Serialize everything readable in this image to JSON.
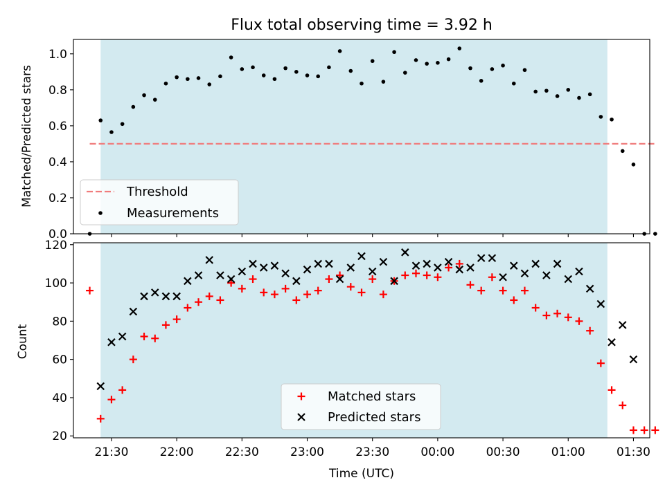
{
  "colors": {
    "shade": "#d3eaf0",
    "threshold": "#f07c7c",
    "measurements": "#000000",
    "matched": "#ff0000",
    "predicted": "#000000"
  },
  "chart_data": [
    {
      "type": "scatter",
      "title": "Flux total observing time = 3.92 h",
      "xlabel": "",
      "ylabel": "Matched/Predicted stars",
      "xlim": [
        -17.5,
        247.5
      ],
      "ylim": [
        0,
        1.08
      ],
      "yticks": [
        0.0,
        0.2,
        0.4,
        0.6,
        0.8,
        1.0
      ],
      "ytick_labels": [
        "0.0",
        "0.2",
        "0.4",
        "0.6",
        "0.8",
        "1.0"
      ],
      "shaded_span": [
        -5,
        228
      ],
      "x_unit": "minutes after 21:30 UTC",
      "grid": false,
      "legend_position": "lower-left",
      "legend": [
        "Threshold",
        "Measurements"
      ],
      "threshold": {
        "name": "Threshold",
        "value": 0.5,
        "x": [
          -10,
          250
        ]
      },
      "series": [
        {
          "name": "Measurements",
          "x": [
            -10,
            -5,
            0,
            5,
            10,
            15,
            20,
            25,
            30,
            35,
            40,
            45,
            50,
            55,
            60,
            65,
            70,
            75,
            80,
            85,
            90,
            95,
            100,
            105,
            110,
            115,
            120,
            125,
            130,
            135,
            140,
            145,
            150,
            155,
            160,
            165,
            170,
            175,
            180,
            185,
            190,
            195,
            200,
            205,
            210,
            215,
            220,
            225,
            230,
            235,
            240,
            245,
            250
          ],
          "y": [
            0.0,
            0.63,
            0.565,
            0.61,
            0.705,
            0.77,
            0.745,
            0.835,
            0.87,
            0.86,
            0.865,
            0.83,
            0.875,
            0.98,
            0.915,
            0.925,
            0.88,
            0.86,
            0.92,
            0.9,
            0.88,
            0.875,
            0.925,
            1.015,
            0.905,
            0.835,
            0.96,
            0.845,
            1.01,
            0.895,
            0.965,
            0.945,
            0.95,
            0.97,
            1.03,
            0.92,
            0.85,
            0.915,
            0.935,
            0.835,
            0.91,
            0.79,
            0.795,
            0.765,
            0.8,
            0.755,
            0.775,
            0.65,
            0.635,
            0.46,
            0.385,
            0.0,
            0.0
          ]
        }
      ]
    },
    {
      "type": "scatter",
      "title": "",
      "xlabel": "Time (UTC)",
      "ylabel": "Count",
      "xlim": [
        -17.5,
        247.5
      ],
      "ylim": [
        19,
        121
      ],
      "yticks": [
        20,
        40,
        60,
        80,
        100,
        120
      ],
      "ytick_labels": [
        "20",
        "40",
        "60",
        "80",
        "100",
        "120"
      ],
      "xticks": [
        0,
        30,
        60,
        90,
        120,
        150,
        180,
        210,
        240
      ],
      "xtick_labels": [
        "21:30",
        "22:00",
        "22:30",
        "23:00",
        "23:30",
        "00:00",
        "00:30",
        "01:00",
        "01:30"
      ],
      "shaded_span": [
        -5,
        228
      ],
      "x_unit": "minutes after 21:30 UTC",
      "grid": false,
      "legend_position": "lower-center",
      "legend": [
        "Matched stars",
        "Predicted stars"
      ],
      "series": [
        {
          "name": "Matched stars",
          "marker": "plus",
          "x": [
            -10,
            -5,
            0,
            5,
            10,
            15,
            20,
            25,
            30,
            35,
            40,
            45,
            50,
            55,
            60,
            65,
            70,
            75,
            80,
            85,
            90,
            95,
            100,
            105,
            110,
            115,
            120,
            125,
            130,
            135,
            140,
            145,
            150,
            155,
            160,
            165,
            170,
            175,
            180,
            185,
            190,
            195,
            200,
            205,
            210,
            215,
            220,
            225,
            230,
            235,
            240,
            245,
            250
          ],
          "y": [
            96,
            29,
            39,
            44,
            60,
            72,
            71,
            78,
            81,
            87,
            90,
            93,
            91,
            100,
            97,
            102,
            95,
            94,
            97,
            91,
            94,
            96,
            102,
            104,
            98,
            95,
            102,
            94,
            101,
            104,
            105,
            104,
            103,
            108,
            110,
            99,
            96,
            103,
            96,
            91,
            96,
            87,
            83,
            84,
            82,
            80,
            75,
            58,
            44,
            36,
            23,
            23,
            23
          ]
        },
        {
          "name": "Predicted stars",
          "marker": "x",
          "x": [
            -5,
            0,
            5,
            10,
            15,
            20,
            25,
            30,
            35,
            40,
            45,
            50,
            55,
            60,
            65,
            70,
            75,
            80,
            85,
            90,
            95,
            100,
            105,
            110,
            115,
            120,
            125,
            130,
            135,
            140,
            145,
            150,
            155,
            160,
            165,
            170,
            175,
            180,
            185,
            190,
            195,
            200,
            205,
            210,
            215,
            220,
            225,
            230,
            235,
            240
          ],
          "y": [
            46,
            69,
            72,
            85,
            93,
            95,
            93,
            93,
            101,
            104,
            112,
            104,
            102,
            106,
            110,
            108,
            109,
            105,
            101,
            107,
            110,
            110,
            102,
            108,
            114,
            106,
            111,
            101,
            116,
            109,
            110,
            108,
            111,
            107,
            108,
            113,
            113,
            103,
            109,
            105,
            110,
            104,
            110,
            102,
            106,
            97,
            89,
            69,
            78,
            60
          ]
        }
      ]
    }
  ]
}
